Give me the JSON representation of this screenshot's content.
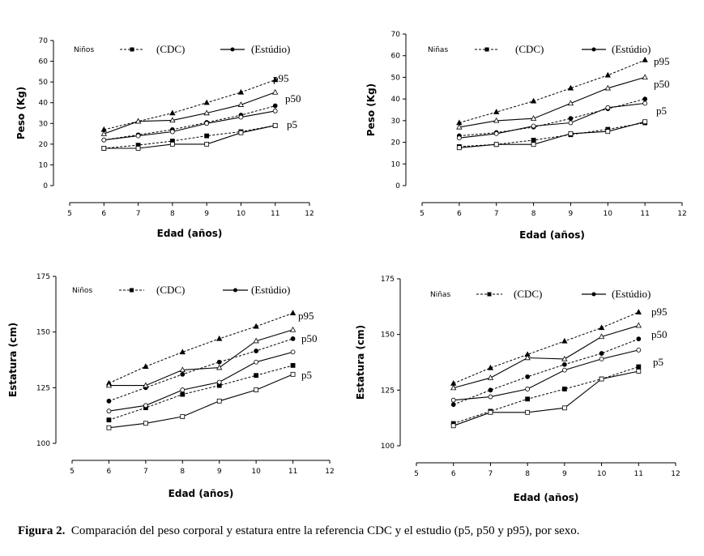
{
  "caption": {
    "label": "Figura 2.",
    "text": "Comparación del peso corporal y estatura entre la referencia CDC y el estudio (p5, p50 y p95), por sexo."
  },
  "chart_data": [
    {
      "type": "line",
      "group": "Niños",
      "legend": {
        "ref": "(CDC)",
        "study": "(Estúdio)"
      },
      "xlabel": "Edad (años)",
      "ylabel": "Peso (Kg)",
      "xlim": [
        5,
        12
      ],
      "ylim": [
        0,
        70
      ],
      "xticks": [
        5,
        6,
        7,
        8,
        9,
        10,
        11,
        12
      ],
      "yticks": [
        0,
        10,
        20,
        30,
        40,
        50,
        60,
        70
      ],
      "x": [
        6,
        7,
        8,
        9,
        10,
        11
      ],
      "percentile_labels": [
        "p95",
        "p50",
        "p5"
      ],
      "series": [
        {
          "source": "CDC",
          "percentile": "p95",
          "values": [
            27,
            31,
            35,
            40,
            45,
            51
          ]
        },
        {
          "source": "CDC",
          "percentile": "p50",
          "values": [
            22,
            24.5,
            27,
            30.5,
            34,
            38.5
          ]
        },
        {
          "source": "CDC",
          "percentile": "p5",
          "values": [
            18,
            19.5,
            21.5,
            24,
            26,
            29
          ]
        },
        {
          "source": "Estúdio",
          "percentile": "p95",
          "values": [
            25,
            31,
            31.5,
            35,
            39,
            45
          ]
        },
        {
          "source": "Estúdio",
          "percentile": "p50",
          "values": [
            22,
            24,
            26,
            30,
            33,
            36
          ]
        },
        {
          "source": "Estúdio",
          "percentile": "p5",
          "values": [
            18,
            18,
            20,
            20,
            25.5,
            29
          ]
        }
      ]
    },
    {
      "type": "line",
      "group": "Niñas",
      "legend": {
        "ref": "(CDC)",
        "study": "(Estúdio)"
      },
      "xlabel": "Edad (años)",
      "ylabel": "Peso (Kg)",
      "xlim": [
        5,
        12
      ],
      "ylim": [
        0,
        70
      ],
      "xticks": [
        5,
        6,
        7,
        8,
        9,
        10,
        11,
        12
      ],
      "yticks": [
        0,
        10,
        20,
        30,
        40,
        50,
        60,
        70
      ],
      "x": [
        6,
        7,
        8,
        9,
        10,
        11
      ],
      "percentile_labels": [
        "p95",
        "p50",
        "p5"
      ],
      "series": [
        {
          "source": "CDC",
          "percentile": "p95",
          "values": [
            29,
            34,
            39,
            45,
            51,
            58
          ]
        },
        {
          "source": "CDC",
          "percentile": "p50",
          "values": [
            23,
            24.5,
            27,
            31,
            35.5,
            40
          ]
        },
        {
          "source": "CDC",
          "percentile": "p5",
          "values": [
            18,
            19,
            21,
            23.5,
            26,
            29
          ]
        },
        {
          "source": "Estúdio",
          "percentile": "p95",
          "values": [
            27,
            30,
            31,
            38,
            45,
            50
          ]
        },
        {
          "source": "Estúdio",
          "percentile": "p50",
          "values": [
            22,
            24,
            27.5,
            29,
            36,
            38
          ]
        },
        {
          "source": "Estúdio",
          "percentile": "p5",
          "values": [
            17.5,
            19,
            19,
            24,
            25,
            29.5
          ]
        }
      ]
    },
    {
      "type": "line",
      "group": "Niños",
      "legend": {
        "ref": "(CDC)",
        "study": "(Estúdio)"
      },
      "xlabel": "Edad (años)",
      "ylabel": "Estatura (cm)",
      "xlim": [
        5,
        12
      ],
      "ylim": [
        100,
        175
      ],
      "xticks": [
        5,
        6,
        7,
        8,
        9,
        10,
        11,
        12
      ],
      "yticks": [
        100,
        125,
        150,
        175
      ],
      "x": [
        6,
        7,
        8,
        9,
        10,
        11
      ],
      "percentile_labels": [
        "p95",
        "p50",
        "p5"
      ],
      "series": [
        {
          "source": "CDC",
          "percentile": "p95",
          "values": [
            127,
            134.5,
            141,
            147,
            152.5,
            158.5
          ]
        },
        {
          "source": "CDC",
          "percentile": "p50",
          "values": [
            119,
            125,
            131,
            136.5,
            141.5,
            147
          ]
        },
        {
          "source": "CDC",
          "percentile": "p5",
          "values": [
            110.5,
            116,
            122,
            126,
            130.5,
            135
          ]
        },
        {
          "source": "Estúdio",
          "percentile": "p95",
          "values": [
            126,
            126,
            133,
            134,
            146,
            151
          ]
        },
        {
          "source": "Estúdio",
          "percentile": "p50",
          "values": [
            114.5,
            117,
            124,
            127.5,
            136.5,
            141
          ]
        },
        {
          "source": "Estúdio",
          "percentile": "p5",
          "values": [
            107,
            109,
            112,
            119,
            124,
            131
          ]
        }
      ]
    },
    {
      "type": "line",
      "group": "Niñas",
      "legend": {
        "ref": "(CDC)",
        "study": "(Estúdio)"
      },
      "xlabel": "Edad (años)",
      "ylabel": "Estatura (cm)",
      "xlim": [
        5,
        12
      ],
      "ylim": [
        100,
        175
      ],
      "xticks": [
        5,
        6,
        7,
        8,
        9,
        10,
        11,
        12
      ],
      "yticks": [
        100,
        125,
        150,
        175
      ],
      "x": [
        6,
        7,
        8,
        9,
        10,
        11
      ],
      "percentile_labels": [
        "p95",
        "p50",
        "p5"
      ],
      "series": [
        {
          "source": "CDC",
          "percentile": "p95",
          "values": [
            128,
            135,
            141,
            147,
            153,
            160
          ]
        },
        {
          "source": "CDC",
          "percentile": "p50",
          "values": [
            118.5,
            125,
            131,
            136.5,
            141.5,
            148
          ]
        },
        {
          "source": "CDC",
          "percentile": "p5",
          "values": [
            110,
            115.5,
            121,
            125.5,
            130,
            135.5
          ]
        },
        {
          "source": "Estúdio",
          "percentile": "p95",
          "values": [
            126,
            130.5,
            139.5,
            139,
            149,
            154
          ]
        },
        {
          "source": "Estúdio",
          "percentile": "p50",
          "values": [
            120.5,
            122,
            125.5,
            134,
            139,
            143
          ]
        },
        {
          "source": "Estúdio",
          "percentile": "p5",
          "values": [
            109,
            115,
            115,
            117,
            130,
            133.5
          ]
        }
      ]
    }
  ]
}
